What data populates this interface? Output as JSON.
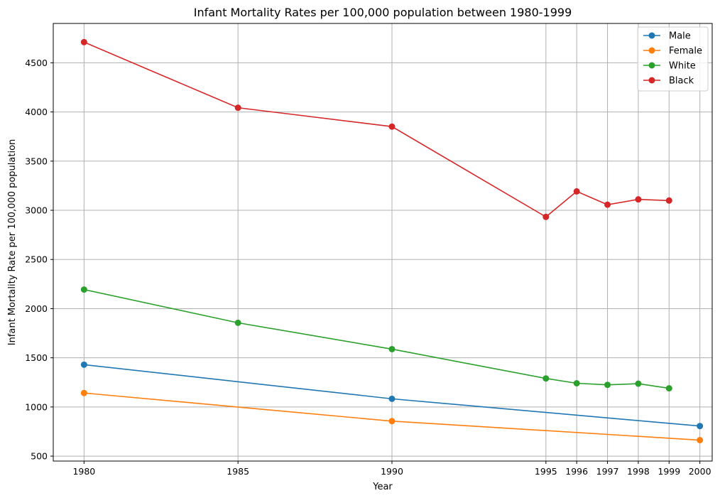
{
  "chart_data": {
    "type": "line",
    "title": "Infant Mortality Rates per 100,000 population between 1980-1999",
    "xlabel": "Year",
    "ylabel": "Infant Mortality Rate per 100,000 population",
    "xlim": [
      1979,
      2000.4
    ],
    "ylim": [
      450,
      4900
    ],
    "xticks": [
      1980,
      1985,
      1990,
      1995,
      1996,
      1997,
      1998,
      1999,
      2000
    ],
    "yticks": [
      500,
      1000,
      1500,
      2000,
      2500,
      3000,
      3500,
      4000,
      4500
    ],
    "grid": true,
    "legend_position": "top-right",
    "series": [
      {
        "name": "Male",
        "color": "#1f77b4",
        "x": [
          1980,
          1990,
          2000
        ],
        "y": [
          1430,
          1083,
          806
        ]
      },
      {
        "name": "Female",
        "color": "#ff7f0e",
        "x": [
          1980,
          1990,
          2000
        ],
        "y": [
          1142,
          856,
          663
        ]
      },
      {
        "name": "White",
        "color": "#2ca02c",
        "x": [
          1980,
          1985,
          1990,
          1995,
          1996,
          1997,
          1998,
          1999
        ],
        "y": [
          2194,
          1856,
          1588,
          1290,
          1241,
          1225,
          1237,
          1190
        ]
      },
      {
        "name": "Black",
        "color": "#d62728",
        "x": [
          1980,
          1985,
          1990,
          1995,
          1996,
          1997,
          1998,
          1999
        ],
        "y": [
          4710,
          4043,
          3851,
          2933,
          3192,
          3057,
          3111,
          3099
        ]
      }
    ]
  }
}
